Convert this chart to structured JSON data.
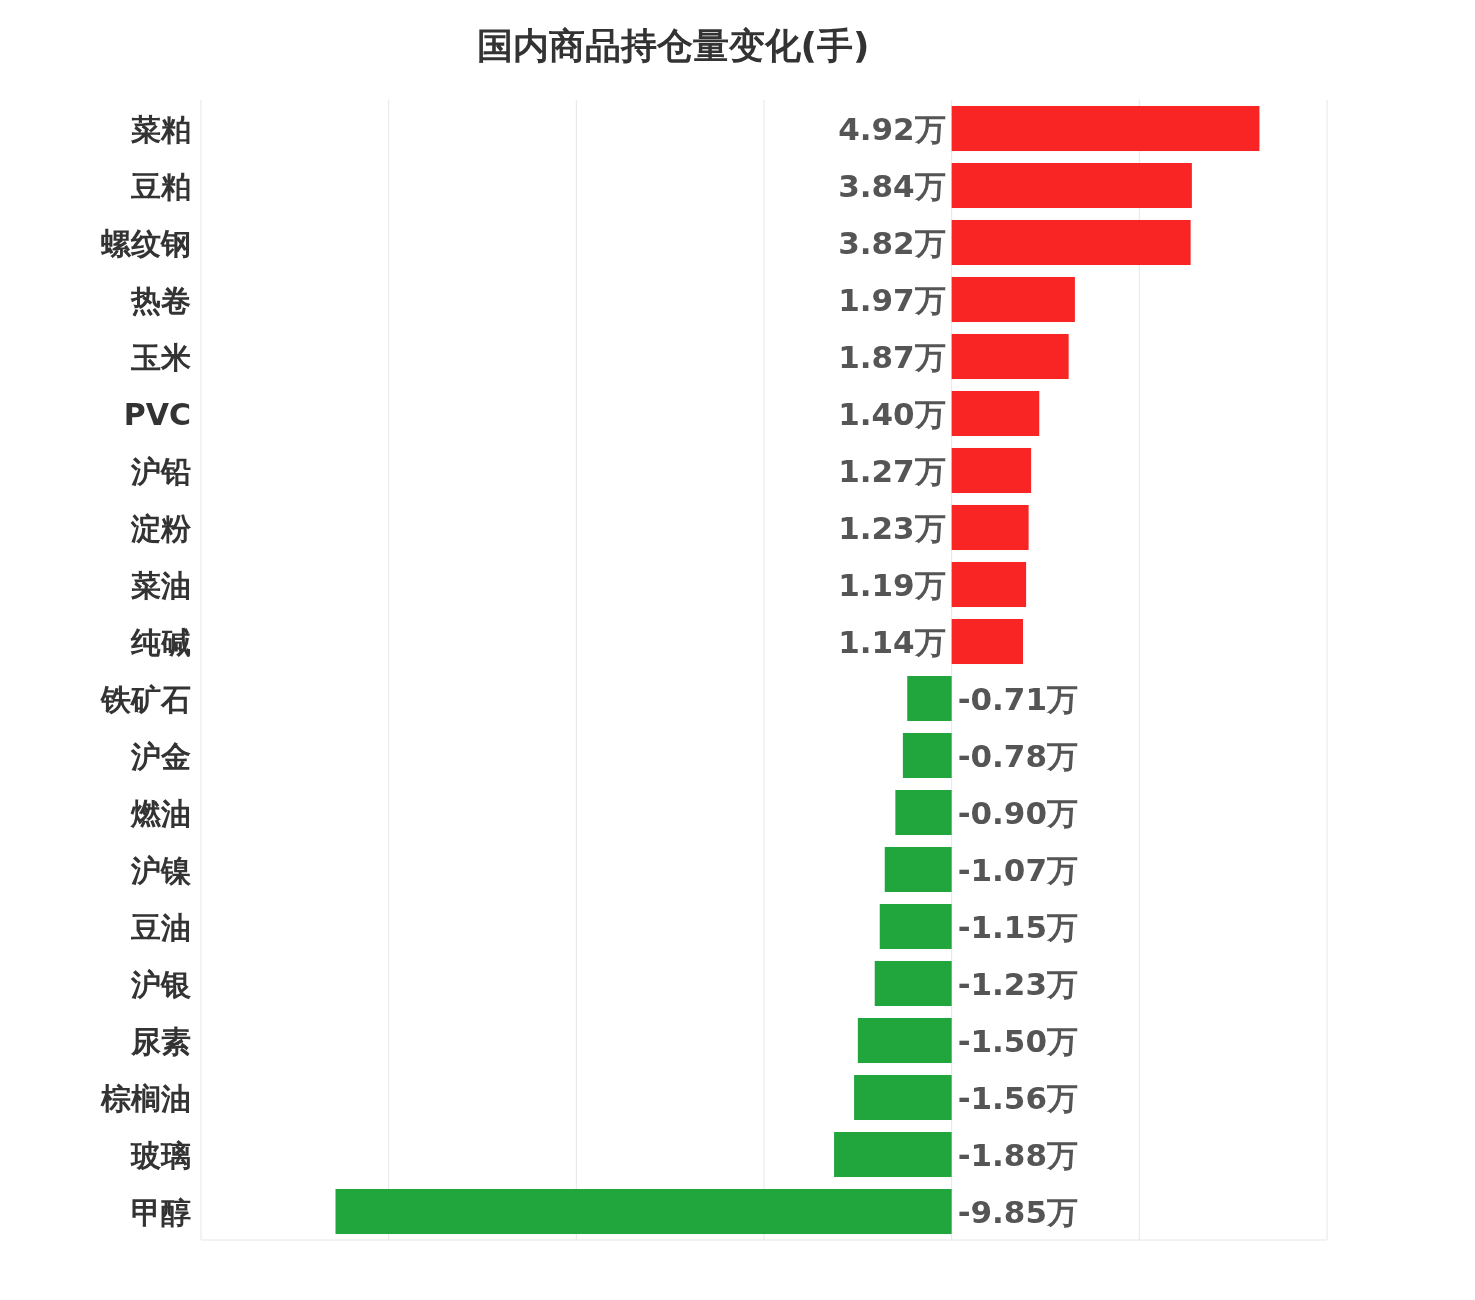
{
  "chart_data": {
    "type": "bar",
    "orientation": "horizontal",
    "title": "国内商品持仓量变化(手)",
    "categories": [
      "菜粕",
      "豆粕",
      "螺纹钢",
      "热卷",
      "玉米",
      "PVC",
      "沪铅",
      "淀粉",
      "菜油",
      "纯碱",
      "铁矿石",
      "沪金",
      "燃油",
      "沪镍",
      "豆油",
      "沪银",
      "尿素",
      "棕榈油",
      "玻璃",
      "甲醇"
    ],
    "values": [
      4.92,
      3.84,
      3.82,
      1.97,
      1.87,
      1.4,
      1.27,
      1.23,
      1.19,
      1.14,
      -0.71,
      -0.78,
      -0.9,
      -1.07,
      -1.15,
      -1.23,
      -1.5,
      -1.56,
      -1.88,
      -9.85
    ],
    "value_labels": [
      "4.92万",
      "3.84万",
      "3.82万",
      "1.97万",
      "1.87万",
      "1.40万",
      "1.27万",
      "1.23万",
      "1.19万",
      "1.14万",
      "-0.71万",
      "-0.78万",
      "-0.90万",
      "-1.07万",
      "-1.15万",
      "-1.23万",
      "-1.50万",
      "-1.56万",
      "-1.88万",
      "-9.85万"
    ],
    "colors": [
      "#f92525",
      "#f92525",
      "#f92525",
      "#f92525",
      "#f92525",
      "#f92525",
      "#f92525",
      "#f92525",
      "#f92525",
      "#f92525",
      "#21a63d",
      "#21a63d",
      "#21a63d",
      "#21a63d",
      "#21a63d",
      "#21a63d",
      "#21a63d",
      "#21a63d",
      "#21a63d",
      "#21a63d"
    ],
    "xlim": [
      -12,
      6
    ],
    "xticks": [
      {
        "value": -12,
        "label": null
      },
      {
        "value": -9,
        "label": null
      },
      {
        "value": -6,
        "label": null
      },
      {
        "value": -3,
        "label": null
      },
      {
        "value": 0,
        "label": null
      },
      {
        "value": 3,
        "label": null
      },
      {
        "value": 6,
        "label": null
      }
    ],
    "grid": "x",
    "tick_labels": "y"
  }
}
